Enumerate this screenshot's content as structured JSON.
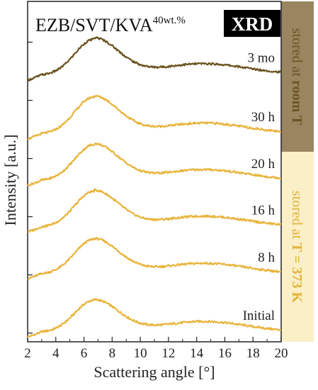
{
  "chart_data": {
    "type": "line",
    "title": "EZB/SVT/KVA",
    "title_superscript": "40wt.%",
    "badge": "XRD",
    "xlabel": "Scattering angle [°]",
    "ylabel": "Intensity [a.u.]",
    "xlim": [
      2,
      20
    ],
    "x_ticks": [
      "2",
      "4",
      "6",
      "8",
      "10",
      "12",
      "14",
      "16",
      "18",
      "20"
    ],
    "y_ticks_numbered": false,
    "grid": false,
    "stacked_offset_curves": true,
    "peak_angle_deg": 6.7,
    "series": [
      {
        "name": "Initial",
        "color": "#e8b43c",
        "baseline_y": 0.0,
        "peak_amplitude": 0.55,
        "tail_level": 0.02
      },
      {
        "name": "8 h",
        "color": "#e8b43c",
        "baseline_y": 1.0,
        "peak_amplitude": 0.6,
        "tail_level": 0.02
      },
      {
        "name": "16 h",
        "color": "#e8b43c",
        "baseline_y": 1.8,
        "peak_amplitude": 0.62,
        "tail_level": 0.03
      },
      {
        "name": "20 h",
        "color": "#e8b43c",
        "baseline_y": 2.6,
        "peak_amplitude": 0.62,
        "tail_level": 0.03
      },
      {
        "name": "30 h",
        "color": "#e8b43c",
        "baseline_y": 3.4,
        "peak_amplitude": 0.64,
        "tail_level": 0.03
      },
      {
        "name": "3 mo",
        "color": "#6b5320",
        "baseline_y": 4.4,
        "peak_amplitude": 0.62,
        "tail_level": 0.05
      }
    ],
    "side_bands": [
      {
        "text_plain": "stored at ",
        "text_bold": "room T",
        "color": "#6b5320",
        "background": "#9a8561"
      },
      {
        "text_plain": "stored at ",
        "text_bold": "T = 373 K",
        "color": "#e3b33a",
        "background": "#fbefc8"
      }
    ]
  }
}
